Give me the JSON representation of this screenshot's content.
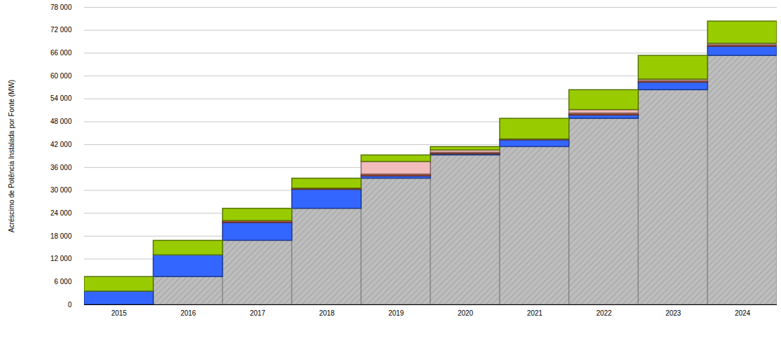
{
  "chart_data": {
    "type": "bar",
    "stacked": true,
    "y_label": "Acréscimo de Potência Instalada por Fonte (MW)",
    "categories": [
      "2015",
      "2016",
      "2017",
      "2018",
      "2019",
      "2020",
      "2021",
      "2022",
      "2023",
      "2024"
    ],
    "series": [
      {
        "color": "#bdbdbd",
        "values": [
          0,
          7300,
          16800,
          25200,
          33100,
          39200,
          41400,
          48800,
          56300,
          65300
        ]
      },
      {
        "color": "#3366ff",
        "values": [
          3500,
          5700,
          4700,
          5000,
          600,
          300,
          1800,
          900,
          2000,
          2400
        ]
      },
      {
        "color": "#b5533c",
        "values": [
          0,
          0,
          500,
          300,
          500,
          400,
          200,
          500,
          400,
          400
        ]
      },
      {
        "color": "#f2bcbc",
        "values": [
          0,
          0,
          0,
          0,
          3300,
          600,
          0,
          900,
          400,
          400
        ]
      },
      {
        "color": "#99cc00",
        "values": [
          3800,
          3800,
          3200,
          2600,
          1700,
          900,
          5400,
          5200,
          6200,
          5800
        ]
      }
    ],
    "ylim": [
      0,
      78000
    ],
    "yticks": [
      0,
      {
        "value": 6000,
        "label": "6 000"
      },
      {
        "value": 12000,
        "label": "12 000"
      },
      {
        "value": 18000,
        "label": "18 000"
      },
      {
        "value": 24000,
        "label": "24 000"
      },
      {
        "value": 30000,
        "label": "30 000"
      },
      {
        "value": 36000,
        "label": "36 000"
      },
      {
        "value": 42000,
        "label": "42 000"
      },
      {
        "value": 48000,
        "label": "48 000"
      },
      {
        "value": 54000,
        "label": "54 000"
      },
      {
        "value": 60000,
        "label": "60 000"
      },
      {
        "value": 66000,
        "label": "66 000"
      },
      {
        "value": 72000,
        "label": "72 000"
      },
      {
        "value": 78000,
        "label": "78 000"
      }
    ],
    "grid": true
  }
}
